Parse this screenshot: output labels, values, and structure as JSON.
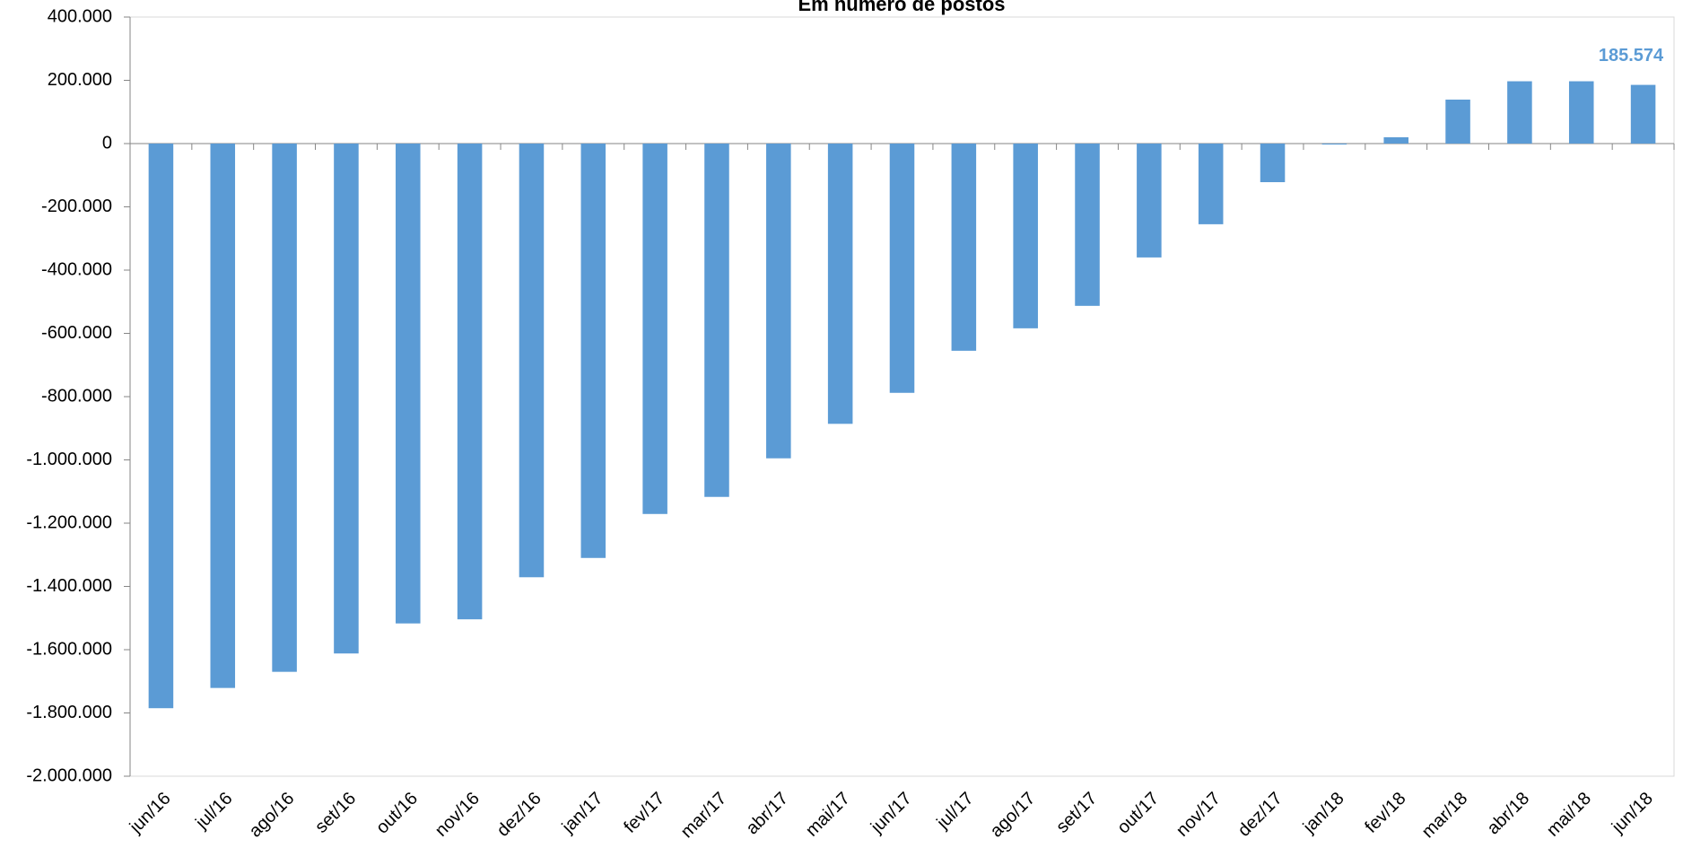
{
  "chart_data": {
    "type": "bar",
    "title": "Em número de postos",
    "categories": [
      "jun/16",
      "jul/16",
      "ago/16",
      "set/16",
      "out/16",
      "nov/16",
      "dez/16",
      "jan/17",
      "fev/17",
      "mar/17",
      "abr/17",
      "mai/17",
      "jun/17",
      "jul/17",
      "ago/17",
      "set/17",
      "out/17",
      "nov/17",
      "dez/17",
      "jan/18",
      "fev/18",
      "mar/18",
      "abr/18",
      "mai/18",
      "jun/18"
    ],
    "values": [
      -1785000,
      -1721000,
      -1670000,
      -1612000,
      -1517000,
      -1504000,
      -1371000,
      -1310000,
      -1171000,
      -1117000,
      -995000,
      -886000,
      -788000,
      -655000,
      -584000,
      -513000,
      -360000,
      -255000,
      -122000,
      -3000,
      20000,
      139000,
      197000,
      197000,
      185574
    ],
    "value_labels": [
      null,
      null,
      null,
      null,
      null,
      null,
      null,
      null,
      null,
      null,
      null,
      null,
      null,
      null,
      null,
      null,
      null,
      null,
      null,
      null,
      null,
      null,
      null,
      null,
      "185.574"
    ],
    "color": "#5b9bd5",
    "ylim": [
      -2000000,
      400000
    ],
    "yticks": [
      {
        "value": -2000000,
        "label": "-2.000.000"
      },
      {
        "value": -1800000,
        "label": "-1.800.000"
      },
      {
        "value": -1600000,
        "label": "-1.600.000"
      },
      {
        "value": -1400000,
        "label": "-1.400.000"
      },
      {
        "value": -1200000,
        "label": "-1.200.000"
      },
      {
        "value": -1000000,
        "label": "-1.000.000"
      },
      {
        "value": -800000,
        "label": "-800.000"
      },
      {
        "value": -600000,
        "label": "-600.000"
      },
      {
        "value": -400000,
        "label": "-400.000"
      },
      {
        "value": -200000,
        "label": "-200.000"
      },
      0,
      {
        "value": 200000,
        "label": "200.000"
      },
      {
        "value": 400000,
        "label": "400.000"
      }
    ],
    "grid": false
  }
}
